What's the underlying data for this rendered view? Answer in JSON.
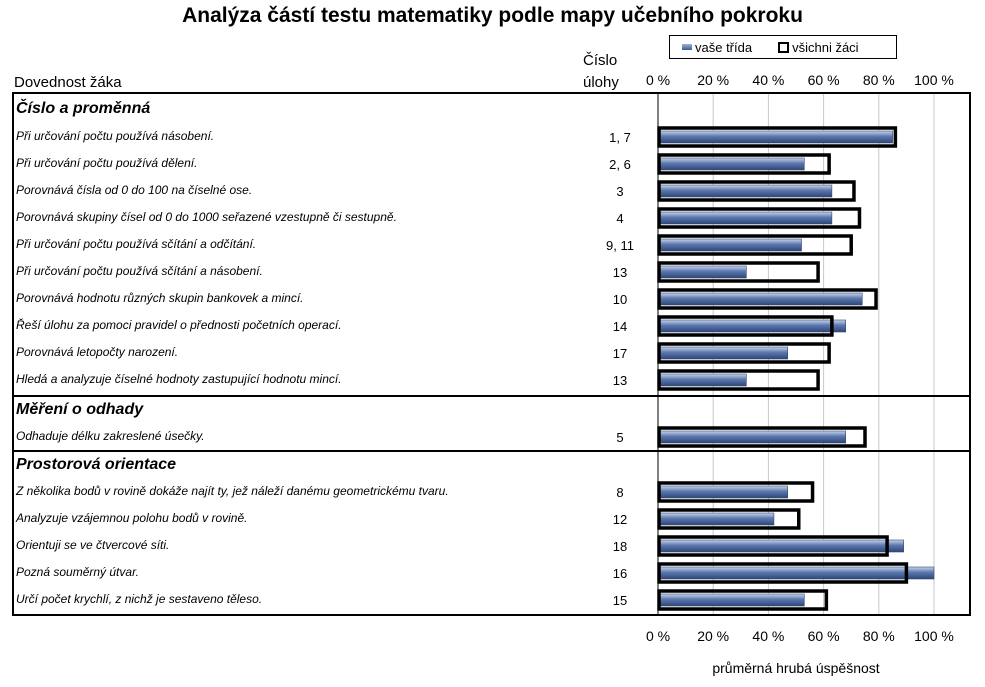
{
  "chart_data": {
    "type": "bar",
    "title": "Analýza částí testu matematiky podle mapy učebního pokroku",
    "xlabel": "průměrná hrubá úspěšnost",
    "column_headers": {
      "skill": "Dovednost žáka",
      "task_line1": "Číslo",
      "task_line2": "úlohy"
    },
    "xlim": [
      0,
      100
    ],
    "ticks": [
      "0 %",
      "20 %",
      "40 %",
      "60 %",
      "80 %",
      "100 %"
    ],
    "tick_values": [
      0,
      20,
      40,
      60,
      80,
      100
    ],
    "legend": {
      "class": "vaše třída",
      "all": "všichni žáci",
      "placement": "top-right"
    },
    "series_colors": {
      "class": "#5b77ad",
      "all": "#000000"
    },
    "sections": [
      {
        "name": "Číslo a proměnná",
        "rows": [
          {
            "skill": "Při určování počtu používá násobení.",
            "task": "1, 7",
            "class": 85,
            "all": 86
          },
          {
            "skill": "Při určování počtu používá dělení.",
            "task": "2, 6",
            "class": 53,
            "all": 62
          },
          {
            "skill": "Porovnává čísla od 0 do 100 na číselné ose.",
            "task": "3",
            "class": 63,
            "all": 71
          },
          {
            "skill": "Porovnává skupiny čísel od 0 do 1000 seřazené vzestupně či sestupně.",
            "task": "4",
            "class": 63,
            "all": 73
          },
          {
            "skill": "Při určování počtu používá sčítání a odčítání.",
            "task": "9, 11",
            "class": 52,
            "all": 70
          },
          {
            "skill": "Při určování počtu používá sčítání a násobení.",
            "task": "13",
            "class": 32,
            "all": 58
          },
          {
            "skill": "Porovnává hodnotu různých skupin bankovek a mincí.",
            "task": "10",
            "class": 74,
            "all": 79
          },
          {
            "skill": "Řeší úlohu za pomoci pravidel o přednosti početních operací.",
            "task": "14",
            "class": 68,
            "all": 63
          },
          {
            "skill": "Porovnává letopočty narození.",
            "task": "17",
            "class": 47,
            "all": 62
          },
          {
            "skill": "Hledá a analyzuje číselné hodnoty zastupující hodnotu mincí.",
            "task": "13",
            "class": 32,
            "all": 58
          }
        ]
      },
      {
        "name": "Měření o odhady",
        "rows": [
          {
            "skill": "Odhaduje délku zakreslené úsečky.",
            "task": "5",
            "class": 68,
            "all": 75
          }
        ]
      },
      {
        "name": "Prostorová orientace",
        "rows": [
          {
            "skill": "Z několika bodů v rovině dokáže najít ty, jež náleží danému geometrickému tvaru.",
            "task": "8",
            "class": 47,
            "all": 56
          },
          {
            "skill": "Analyzuje vzájemnou polohu bodů v rovině.",
            "task": "12",
            "class": 42,
            "all": 51
          },
          {
            "skill": "Orientuji se ve čtvercové síti.",
            "task": "18",
            "class": 89,
            "all": 83
          },
          {
            "skill": "Pozná souměrný útvar.",
            "task": "16",
            "class": 100,
            "all": 90
          },
          {
            "skill": "Určí počet krychlí, z nichž je sestaveno těleso.",
            "task": "15",
            "class": 53,
            "all": 61
          }
        ]
      }
    ]
  }
}
